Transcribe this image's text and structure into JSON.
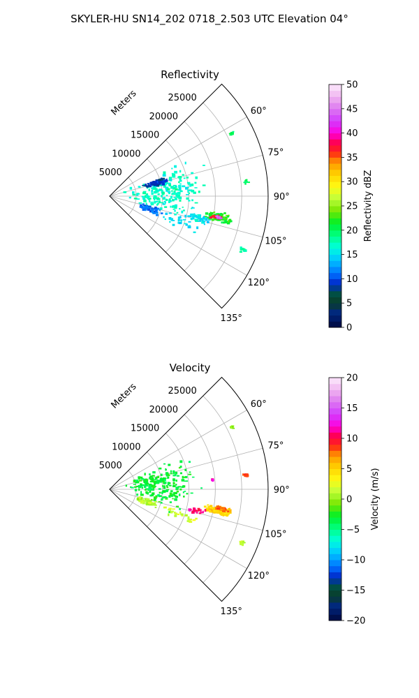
{
  "figure_title": "SKYLER-HU  SN14_202  0718_2.503 UTC Elevation 04°",
  "chart_data": [
    {
      "type": "polar-sector-heatmap",
      "title": "Reflectivity",
      "range_label": "Meters",
      "range_ticks": [
        5000,
        10000,
        15000,
        20000,
        25000
      ],
      "range_tick_labels": [
        "5000",
        "10000",
        "15000",
        "20000",
        "25000"
      ],
      "rmax": 30000,
      "azimuth_range_deg": [
        45,
        135
      ],
      "azimuth_ticks": [
        60,
        75,
        90,
        105,
        120,
        135
      ],
      "azimuth_tick_labels": [
        "60°",
        "75°",
        "90°",
        "105°",
        "120°",
        "135°"
      ],
      "colorbar": {
        "label": "Reflectivity dBZ",
        "min": 0,
        "max": 50,
        "ticks": [
          0,
          5,
          10,
          15,
          20,
          25,
          30,
          35,
          40,
          45,
          50
        ],
        "tick_labels": [
          "0",
          "5",
          "10",
          "15",
          "20",
          "25",
          "30",
          "35",
          "40",
          "45",
          "50"
        ]
      },
      "echo_regions": [
        {
          "az": 86,
          "r": 11000,
          "value": 17,
          "spread_az": 28,
          "spread_r": 9000,
          "count": 220
        },
        {
          "az": 74,
          "r": 9000,
          "value": 9,
          "spread_az": 5,
          "spread_r": 3000,
          "count": 70
        },
        {
          "az": 108,
          "r": 8000,
          "value": 11,
          "spread_az": 6,
          "spread_r": 3500,
          "count": 55
        },
        {
          "az": 101,
          "r": 21000,
          "value": 22,
          "spread_az": 3,
          "spread_r": 3500,
          "count": 110
        },
        {
          "az": 101,
          "r": 20500,
          "value": 37,
          "spread_az": 1.5,
          "spread_r": 1200,
          "count": 30
        },
        {
          "az": 101,
          "r": 21000,
          "value": 44,
          "spread_az": 0.8,
          "spread_r": 600,
          "count": 10
        },
        {
          "az": 104,
          "r": 17500,
          "value": 15,
          "spread_az": 4,
          "spread_r": 3500,
          "count": 40
        },
        {
          "az": 63,
          "r": 26000,
          "value": 20,
          "spread_az": 1.2,
          "spread_r": 500,
          "count": 8
        },
        {
          "az": 84,
          "r": 26000,
          "value": 20,
          "spread_az": 1.2,
          "spread_r": 500,
          "count": 10
        },
        {
          "az": 112,
          "r": 27000,
          "value": 18,
          "spread_az": 1.5,
          "spread_r": 900,
          "count": 10
        },
        {
          "az": 110,
          "r": 14000,
          "value": 15,
          "spread_az": 6,
          "spread_r": 5000,
          "count": 25
        }
      ]
    },
    {
      "type": "polar-sector-heatmap",
      "title": "Velocity",
      "range_label": "Meters",
      "range_ticks": [
        5000,
        10000,
        15000,
        20000,
        25000
      ],
      "range_tick_labels": [
        "5000",
        "10000",
        "15000",
        "20000",
        "25000"
      ],
      "rmax": 30000,
      "azimuth_range_deg": [
        45,
        135
      ],
      "azimuth_ticks": [
        60,
        75,
        90,
        105,
        120,
        135
      ],
      "azimuth_tick_labels": [
        "60°",
        "75°",
        "90°",
        "105°",
        "120°",
        "135°"
      ],
      "colorbar": {
        "label": "Velocity (m/s)",
        "min": -20,
        "max": 20,
        "ticks": [
          -20,
          -15,
          -10,
          -5,
          0,
          5,
          10,
          15,
          20
        ],
        "tick_labels": [
          "−20",
          "−15",
          "−10",
          "−5",
          "0",
          "5",
          "10",
          "15",
          "20"
        ]
      },
      "echo_regions": [
        {
          "az": 86,
          "r": 10000,
          "value": -3,
          "spread_az": 26,
          "spread_r": 9000,
          "count": 220
        },
        {
          "az": 108,
          "r": 7500,
          "value": 1,
          "spread_az": 6,
          "spread_r": 3500,
          "count": 50
        },
        {
          "az": 101,
          "r": 21000,
          "value": 5,
          "spread_az": 3,
          "spread_r": 3500,
          "count": 110
        },
        {
          "az": 100,
          "r": 21500,
          "value": 8,
          "spread_az": 1.5,
          "spread_r": 1500,
          "count": 30
        },
        {
          "az": 104,
          "r": 17000,
          "value": 11,
          "spread_az": 2.5,
          "spread_r": 2500,
          "count": 25
        },
        {
          "az": 84,
          "r": 26000,
          "value": 9,
          "spread_az": 1.2,
          "spread_r": 600,
          "count": 12
        },
        {
          "az": 85,
          "r": 19500,
          "value": 12,
          "spread_az": 0.6,
          "spread_r": 400,
          "count": 5
        },
        {
          "az": 63,
          "r": 26000,
          "value": 0,
          "spread_az": 1.2,
          "spread_r": 500,
          "count": 8
        },
        {
          "az": 112,
          "r": 27000,
          "value": 1,
          "spread_az": 1.5,
          "spread_r": 900,
          "count": 10
        },
        {
          "az": 110,
          "r": 14000,
          "value": 2,
          "spread_az": 6,
          "spread_r": 5000,
          "count": 25
        }
      ]
    }
  ]
}
